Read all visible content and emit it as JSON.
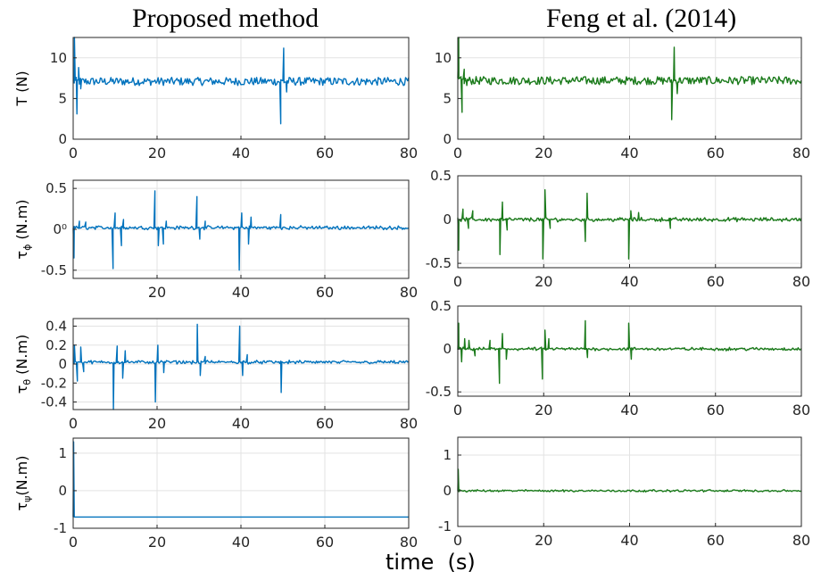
{
  "column_titles": {
    "left": "Proposed method",
    "right": "Feng et al. (2014)"
  },
  "xlabel": "time  (s)",
  "chart_data": [
    {
      "type": "line",
      "name": "T-proposed",
      "ylabel": "T  (N)",
      "xlim": [
        0,
        80
      ],
      "ylim": [
        0,
        12.5
      ],
      "xticks": [
        0,
        20,
        40,
        60,
        80
      ],
      "yticks": [
        0,
        5,
        10
      ],
      "grid": true,
      "color": "#0072bd",
      "steady": 7.1,
      "spikes": [
        {
          "t": 0.3,
          "v": 12.5
        },
        {
          "t": 0.9,
          "v": 3.1
        },
        {
          "t": 1.3,
          "v": 8.8
        },
        {
          "t": 1.8,
          "v": 6.2
        },
        {
          "t": 2.3,
          "v": 7.4
        },
        {
          "t": 49.5,
          "v": 1.9
        },
        {
          "t": 50.2,
          "v": 11.2
        },
        {
          "t": 50.9,
          "v": 5.8
        },
        {
          "t": 51.5,
          "v": 7.6
        }
      ],
      "noise": 0.04
    },
    {
      "type": "line",
      "name": "T-feng",
      "ylabel": "",
      "xlim": [
        0,
        80
      ],
      "ylim": [
        0,
        12.5
      ],
      "xticks": [
        0,
        20,
        40,
        60,
        80
      ],
      "yticks": [
        0,
        5,
        10
      ],
      "grid": true,
      "color": "#1a7a1a",
      "steady": 7.2,
      "spikes": [
        {
          "t": 0.2,
          "v": 12.5
        },
        {
          "t": 1.0,
          "v": 3.3
        },
        {
          "t": 1.5,
          "v": 8.6
        },
        {
          "t": 2.1,
          "v": 6.6
        },
        {
          "t": 49.8,
          "v": 2.4
        },
        {
          "t": 50.4,
          "v": 11.3
        },
        {
          "t": 51.1,
          "v": 5.6
        },
        {
          "t": 51.6,
          "v": 7.5
        }
      ],
      "noise": 0.04
    },
    {
      "type": "line",
      "name": "tau-phi-proposed",
      "ylabel": "τ_ϕ (N.m)",
      "xlim": [
        0,
        80
      ],
      "ylim": [
        -0.6,
        0.6
      ],
      "xticks": [
        20,
        40,
        60,
        80
      ],
      "ytick_labels": [
        {
          "v": 0.5,
          "t": "0.5"
        },
        {
          "v": 0,
          "t": "0⁰"
        },
        {
          "v": -0.5,
          "t": "-0.5"
        }
      ],
      "grid": true,
      "color": "#0072bd",
      "steady": 0.02,
      "band": 0.015,
      "spikes": [
        {
          "t": 0.2,
          "v": -0.35
        },
        {
          "t": 1.5,
          "v": 0.1
        },
        {
          "t": 3,
          "v": 0.09
        },
        {
          "t": 9.5,
          "v": -0.48
        },
        {
          "t": 10,
          "v": 0.2
        },
        {
          "t": 11.5,
          "v": -0.2
        },
        {
          "t": 12,
          "v": 0.12
        },
        {
          "t": 19.5,
          "v": 0.47
        },
        {
          "t": 20.3,
          "v": -0.2
        },
        {
          "t": 21.5,
          "v": -0.18
        },
        {
          "t": 22.2,
          "v": 0.1
        },
        {
          "t": 29.5,
          "v": 0.4
        },
        {
          "t": 30.2,
          "v": -0.12
        },
        {
          "t": 31.5,
          "v": 0.1
        },
        {
          "t": 39.6,
          "v": -0.5
        },
        {
          "t": 40.2,
          "v": 0.2
        },
        {
          "t": 41.8,
          "v": -0.18
        },
        {
          "t": 42.4,
          "v": 0.15
        },
        {
          "t": 49.5,
          "v": 0.18
        }
      ],
      "noise": 0.01
    },
    {
      "type": "line",
      "name": "tau-phi-feng",
      "ylabel": "",
      "xlim": [
        0,
        80
      ],
      "ylim": [
        -0.55,
        0.5
      ],
      "xticks": [
        0,
        20,
        40,
        60,
        80
      ],
      "ytick_labels": [
        {
          "v": 0.5,
          "t": "0.5"
        },
        {
          "v": 0,
          "t": "0"
        },
        {
          "v": -0.5,
          "t": "-0.5"
        }
      ],
      "grid": true,
      "color": "#1a7a1a",
      "steady": 0.0,
      "band": 0.012,
      "spikes": [
        {
          "t": 0.2,
          "v": -0.35
        },
        {
          "t": 1.2,
          "v": 0.12
        },
        {
          "t": 2.5,
          "v": -0.1
        },
        {
          "t": 3.5,
          "v": 0.1
        },
        {
          "t": 9.8,
          "v": -0.4
        },
        {
          "t": 10.4,
          "v": 0.2
        },
        {
          "t": 11.5,
          "v": -0.12
        },
        {
          "t": 19.8,
          "v": -0.45
        },
        {
          "t": 20.3,
          "v": 0.34
        },
        {
          "t": 21.5,
          "v": -0.1
        },
        {
          "t": 29.7,
          "v": -0.25
        },
        {
          "t": 30.1,
          "v": 0.3
        },
        {
          "t": 39.8,
          "v": -0.45
        },
        {
          "t": 40.3,
          "v": 0.1
        },
        {
          "t": 42.1,
          "v": 0.08
        },
        {
          "t": 49.5,
          "v": -0.1
        }
      ],
      "noise": 0.015
    },
    {
      "type": "line",
      "name": "tau-theta-proposed",
      "ylabel": "τ_θ (N.m)",
      "xlim": [
        0,
        80
      ],
      "ylim": [
        -0.48,
        0.48
      ],
      "xticks": [
        0,
        20,
        40,
        60,
        80
      ],
      "ytick_labels": [
        {
          "v": 0.4,
          "t": "0.4"
        },
        {
          "v": 0.2,
          "t": "0.2"
        },
        {
          "v": 0,
          "t": "0"
        },
        {
          "v": -0.2,
          "t": "-0.2"
        },
        {
          "v": -0.4,
          "t": "-0.4"
        }
      ],
      "grid": true,
      "color": "#0072bd",
      "steady": 0.02,
      "band": 0.012,
      "spikes": [
        {
          "t": 0.3,
          "v": 0.2
        },
        {
          "t": 1.0,
          "v": -0.18
        },
        {
          "t": 1.8,
          "v": 0.18
        },
        {
          "t": 2.5,
          "v": -0.08
        },
        {
          "t": 9.6,
          "v": -0.48
        },
        {
          "t": 10.5,
          "v": 0.19
        },
        {
          "t": 11.8,
          "v": -0.15
        },
        {
          "t": 12.4,
          "v": 0.14
        },
        {
          "t": 19.6,
          "v": -0.4
        },
        {
          "t": 20.2,
          "v": 0.2
        },
        {
          "t": 21.6,
          "v": -0.09
        },
        {
          "t": 29.6,
          "v": 0.42
        },
        {
          "t": 30.3,
          "v": -0.12
        },
        {
          "t": 31.5,
          "v": 0.08
        },
        {
          "t": 39.7,
          "v": 0.4
        },
        {
          "t": 40.4,
          "v": -0.12
        },
        {
          "t": 41.5,
          "v": 0.1
        },
        {
          "t": 49.6,
          "v": -0.3
        }
      ],
      "noise": 0.01
    },
    {
      "type": "line",
      "name": "tau-theta-feng",
      "ylabel": "",
      "xlim": [
        0,
        80
      ],
      "ylim": [
        -0.55,
        0.5
      ],
      "xticks": [
        0,
        20,
        40,
        60,
        80
      ],
      "ytick_labels": [
        {
          "v": 0.5,
          "t": "0.5"
        },
        {
          "v": 0,
          "t": "0"
        },
        {
          "v": -0.5,
          "t": "-0.5"
        }
      ],
      "grid": true,
      "color": "#1a7a1a",
      "steady": 0.0,
      "band": 0.01,
      "spikes": [
        {
          "t": 0.2,
          "v": 0.3
        },
        {
          "t": 0.9,
          "v": -0.15
        },
        {
          "t": 1.6,
          "v": 0.12
        },
        {
          "t": 2.6,
          "v": 0.1
        },
        {
          "t": 4,
          "v": -0.08
        },
        {
          "t": 7.5,
          "v": 0.1
        },
        {
          "t": 9.7,
          "v": -0.4
        },
        {
          "t": 10.4,
          "v": 0.18
        },
        {
          "t": 11.3,
          "v": -0.12
        },
        {
          "t": 19.7,
          "v": -0.35
        },
        {
          "t": 20.3,
          "v": 0.22
        },
        {
          "t": 21.2,
          "v": 0.12
        },
        {
          "t": 29.7,
          "v": 0.33
        },
        {
          "t": 30.2,
          "v": -0.1
        },
        {
          "t": 39.8,
          "v": 0.3
        },
        {
          "t": 40.4,
          "v": -0.12
        }
      ],
      "noise": 0.012
    },
    {
      "type": "line",
      "name": "tau-psi-proposed",
      "ylabel": "τ_ψ(N.m)",
      "xlim": [
        0,
        80
      ],
      "ylim": [
        -1,
        1.4
      ],
      "xticks": [
        0,
        20,
        40,
        60,
        80
      ],
      "ytick_labels": [
        {
          "v": 1,
          "t": "1"
        },
        {
          "v": 0,
          "t": "0"
        },
        {
          "v": -1,
          "t": "-1"
        }
      ],
      "grid": true,
      "color": "#0072bd",
      "steady": -0.7,
      "band": 0.0,
      "spikes": [
        {
          "t": 0.1,
          "v": 1.3
        },
        {
          "t": 0.4,
          "v": -0.7
        }
      ],
      "noise": 0.0
    },
    {
      "type": "line",
      "name": "tau-psi-feng",
      "ylabel": "",
      "xlim": [
        0,
        80
      ],
      "ylim": [
        -1,
        1.5
      ],
      "xticks": [
        0,
        20,
        40,
        60,
        80
      ],
      "ytick_labels": [
        {
          "v": 1,
          "t": "1"
        },
        {
          "v": 0,
          "t": "0"
        },
        {
          "v": -1,
          "t": "-1"
        }
      ],
      "grid": true,
      "color": "#1a7a1a",
      "steady": 0.0,
      "band": 0.01,
      "spikes": [
        {
          "t": 0.1,
          "v": 0.6
        },
        {
          "t": 0.5,
          "v": 0.02
        }
      ],
      "noise": 0.01
    }
  ]
}
